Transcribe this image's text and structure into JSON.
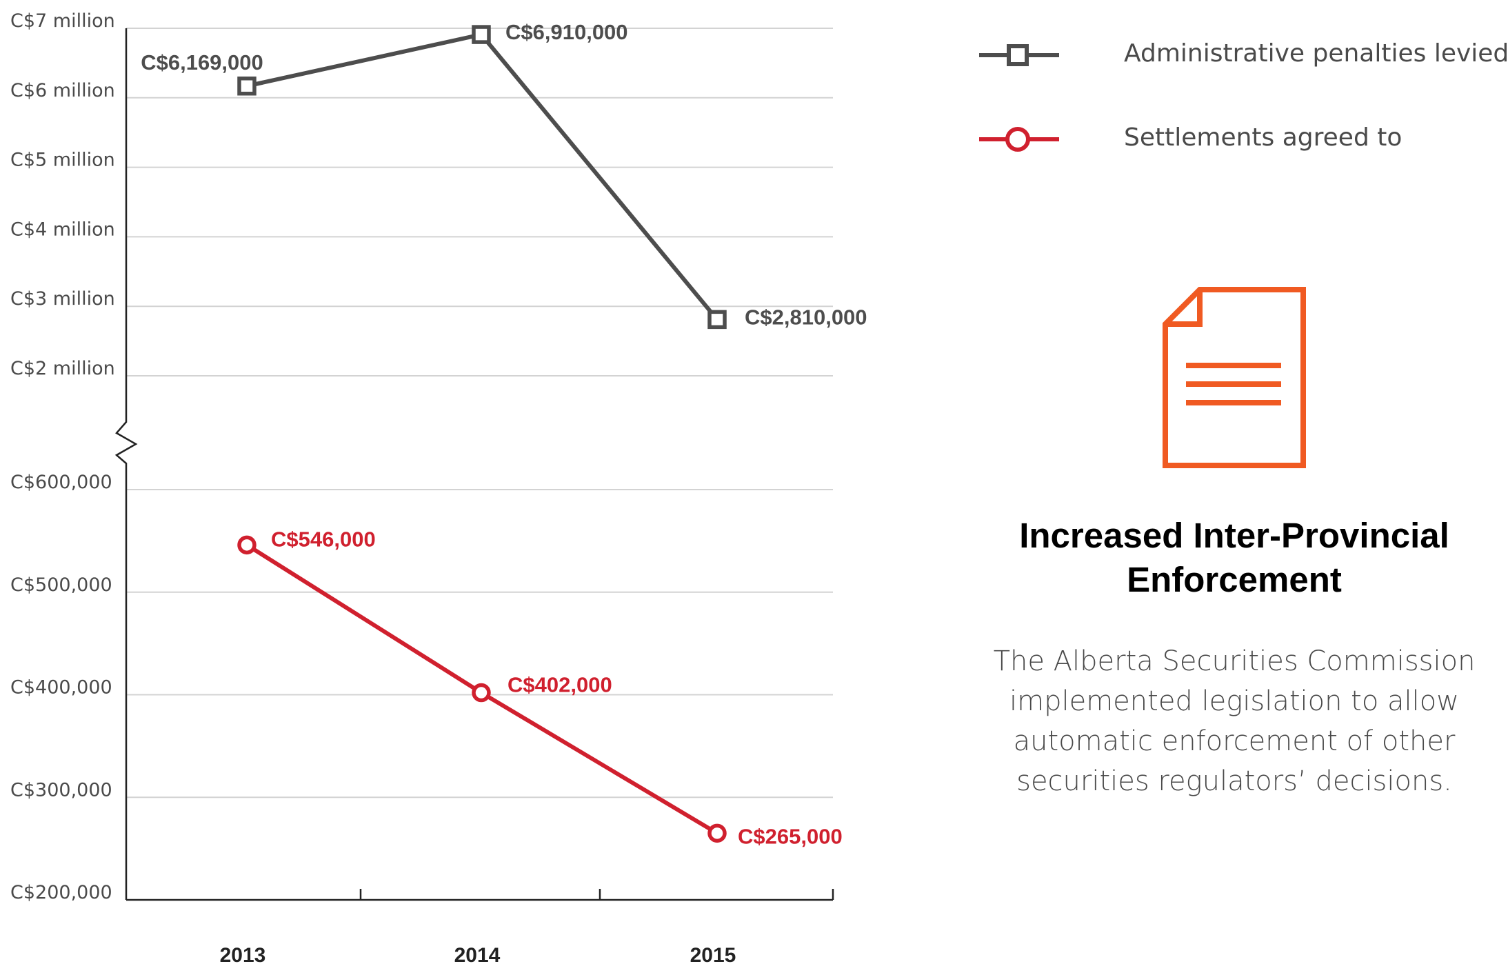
{
  "chart_data": {
    "type": "line",
    "categories": [
      "2013",
      "2014",
      "2015"
    ],
    "broken_axis": true,
    "upper_axis": {
      "ylim": [
        2000000,
        7000000
      ],
      "ticks": [
        {
          "value": 7000000,
          "label": "C$7 million"
        },
        {
          "value": 6000000,
          "label": "C$6 million"
        },
        {
          "value": 5000000,
          "label": "C$5 million"
        },
        {
          "value": 4000000,
          "label": "C$4 million"
        },
        {
          "value": 3000000,
          "label": "C$3 million"
        },
        {
          "value": 2000000,
          "label": "C$2 million"
        }
      ]
    },
    "lower_axis": {
      "ylim": [
        200000,
        600000
      ],
      "ticks": [
        {
          "value": 600000,
          "label": "C$600,000"
        },
        {
          "value": 500000,
          "label": "C$500,000"
        },
        {
          "value": 400000,
          "label": "C$400,000"
        },
        {
          "value": 300000,
          "label": "C$300,000"
        },
        {
          "value": 200000,
          "label": "C$200,000"
        }
      ]
    },
    "series": [
      {
        "name": "Administrative penalties levied",
        "axis": "upper",
        "color": "#4d4d4d",
        "marker": "square",
        "values": [
          6169000,
          6910000,
          2810000
        ],
        "labels": [
          "C$6,169,000",
          "C$6,910,000",
          "C$2,810,000"
        ]
      },
      {
        "name": "Settlements agreed to",
        "axis": "lower",
        "color": "#d0202e",
        "marker": "circle",
        "values": [
          546000,
          402000,
          265000
        ],
        "labels": [
          "C$546,000",
          "C$402,000",
          "C$265,000"
        ]
      }
    ]
  },
  "legend": {
    "items": [
      {
        "label": "Administrative penalties levied",
        "color": "#4d4d4d",
        "marker": "square"
      },
      {
        "label": "Settlements agreed to",
        "color": "#d0202e",
        "marker": "circle"
      }
    ]
  },
  "panel": {
    "icon": "document-icon",
    "icon_color": "#f05a22",
    "headline": "Increased Inter-Provincial Enforcement",
    "body": "The Alberta Securities Commission implemented legislation to allow automatic enforcement of other securities regulators’ decisions."
  }
}
